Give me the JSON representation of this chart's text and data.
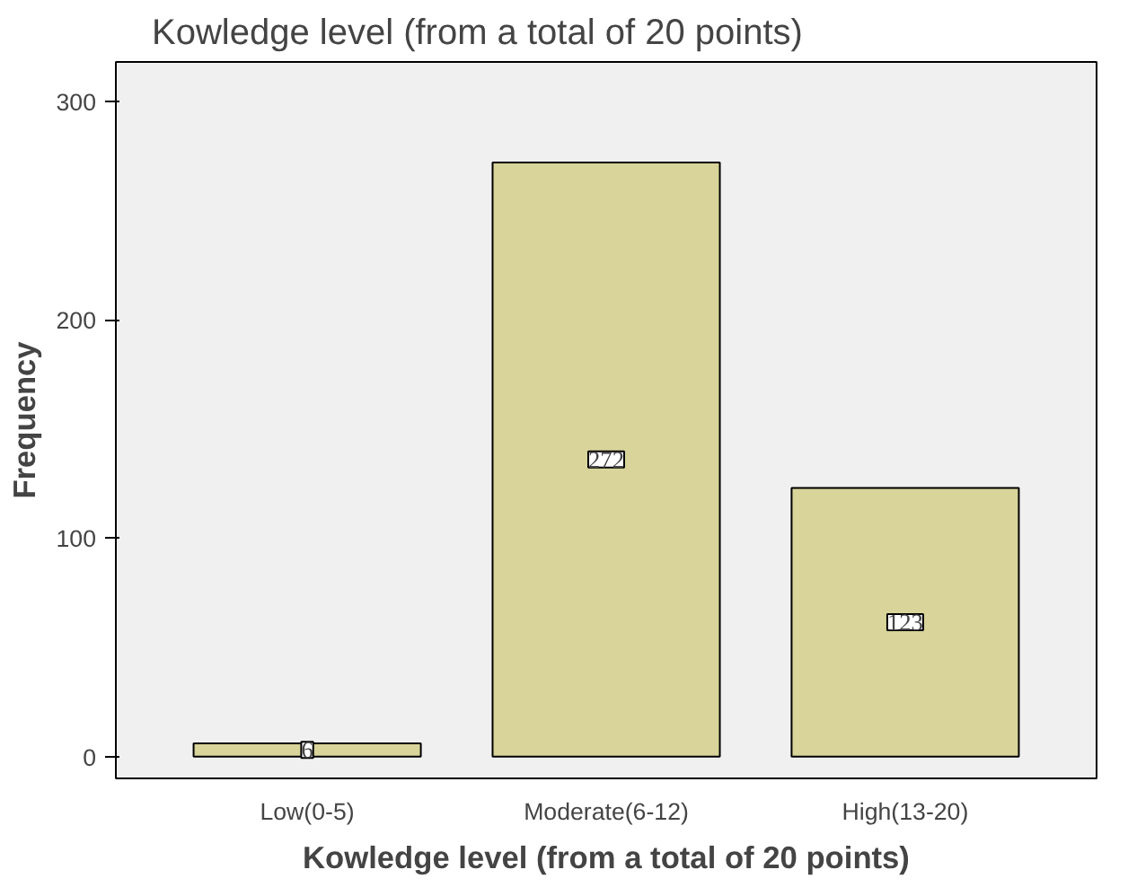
{
  "chart_data": {
    "type": "bar",
    "title": "Kowledge level (from a total of 20 points)",
    "xlabel": "Kowledge level (from a total of 20 points)",
    "ylabel": "Frequency",
    "categories": [
      "Low(0-5)",
      "Moderate(6-12)",
      "High(13-20)"
    ],
    "values": [
      6,
      272,
      123
    ],
    "color": "#d8d49a",
    "ylim": [
      -10,
      318
    ],
    "yticks": [
      0,
      100,
      200,
      300
    ],
    "grid": false,
    "data_labels": true
  }
}
